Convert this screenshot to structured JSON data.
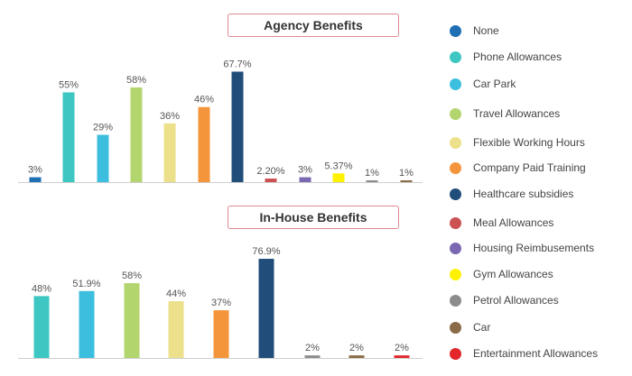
{
  "chart_data": [
    {
      "type": "bar",
      "title": "Agency Benefits",
      "ylim": [
        0,
        80
      ],
      "categories": [
        "None",
        "Phone Allowances",
        "Car Park",
        "Travel Allowances",
        "Flexible Working Hours",
        "Company Paid Training",
        "Healthcare subsidies",
        "Meal Allowances",
        "Housing Reimbusements",
        "Gym Allowances",
        "Petrol Allowances",
        "Car"
      ],
      "values": [
        3,
        55,
        29,
        58,
        36,
        46,
        67.7,
        2.2,
        3,
        5.37,
        1,
        1
      ],
      "data_labels": [
        "3%",
        "55%",
        "29%",
        "58%",
        "36%",
        "46%",
        "67.7%",
        "2.20%",
        "3%",
        "5.37%",
        "1%",
        "1%"
      ]
    },
    {
      "type": "bar",
      "title": "In-House Benefits",
      "ylim": [
        0,
        80
      ],
      "categories": [
        "Phone Allowances",
        "Car Park",
        "Travel Allowances",
        "Flexible Working Hours",
        "Company Paid Training",
        "Healthcare subsidies",
        "Petrol Allowances",
        "Car",
        "Entertainment Allowances"
      ],
      "values": [
        48,
        51.9,
        58,
        44,
        37,
        76.9,
        2,
        2,
        2
      ],
      "data_labels": [
        "48%",
        "51.9%",
        "58%",
        "44%",
        "37%",
        "76.9%",
        "2%",
        "2%",
        "2%"
      ]
    }
  ],
  "legend": [
    {
      "label": "None",
      "color": "#1f6fb4"
    },
    {
      "label": "Phone Allowances",
      "color": "#3ec7c2"
    },
    {
      "label": "Car Park",
      "color": "#3cbfde"
    },
    {
      "label": "Travel Allowances",
      "color": "#b3d56e"
    },
    {
      "label": "Flexible Working Hours",
      "color": "#ede08a"
    },
    {
      "label": "Company Paid Training",
      "color": "#f5953b"
    },
    {
      "label": "Healthcare subsidies",
      "color": "#204d7a"
    },
    {
      "label": "Meal Allowances",
      "color": "#cc5153"
    },
    {
      "label": "Housing Reimbusements",
      "color": "#7b68b3"
    },
    {
      "label": "Gym Allowances",
      "color": "#fff200"
    },
    {
      "label": "Petrol Allowances",
      "color": "#8c8c8c"
    },
    {
      "label": "Car",
      "color": "#8b6b47"
    },
    {
      "label": "Entertainment Allowances",
      "color": "#e2262a"
    }
  ]
}
